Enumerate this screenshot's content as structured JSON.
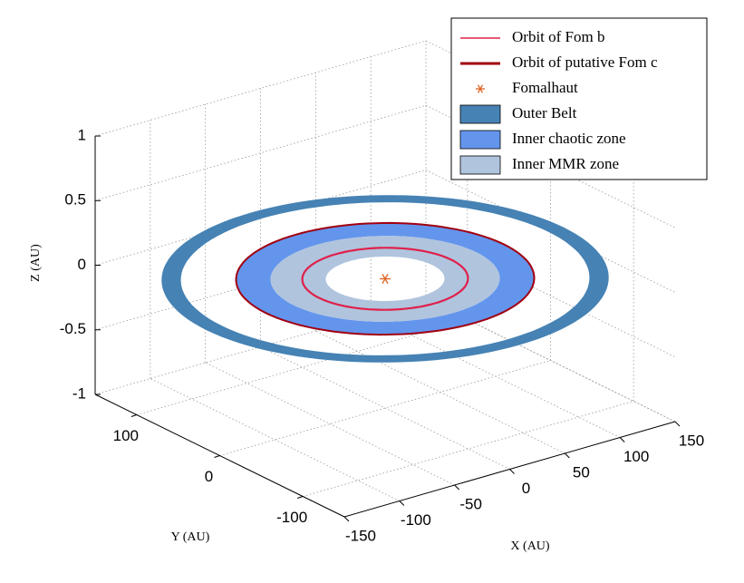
{
  "chart_data": {
    "type": "orbits",
    "xlabel": "X (AU)",
    "ylabel": "Y (AU)",
    "zlabel": "Z (AU)",
    "xlim": [
      -150,
      150
    ],
    "ylim": [
      -150,
      150
    ],
    "zlim": [
      -1,
      1
    ],
    "xticks": [
      -150,
      -100,
      -50,
      0,
      50,
      100,
      150
    ],
    "yticks": [
      -100,
      0,
      100
    ],
    "zticks": [
      -1,
      -0.5,
      0,
      0.5,
      1
    ],
    "grid": true,
    "legend": "top-right",
    "series": [
      {
        "name": "Orbit of Fom b",
        "kind": "orbit",
        "color": "#e0204a",
        "values": [
          60
        ]
      },
      {
        "name": "Orbit of putative Fom c",
        "kind": "orbit",
        "color": "#a00010",
        "values": [
          108
        ]
      },
      {
        "name": "Fomalhaut",
        "kind": "star",
        "color": "#e06020",
        "values": [
          0,
          0
        ]
      },
      {
        "name": "Outer Belt",
        "kind": "ring",
        "color": "#4682b4",
        "values": [
          148,
          162
        ]
      },
      {
        "name": "Inner chaotic zone",
        "kind": "ring",
        "color": "#6495ed",
        "values": [
          83,
          108
        ]
      },
      {
        "name": "Inner MMR zone",
        "kind": "ring",
        "color": "#b0c4de",
        "values": [
          43,
          83
        ]
      }
    ]
  }
}
